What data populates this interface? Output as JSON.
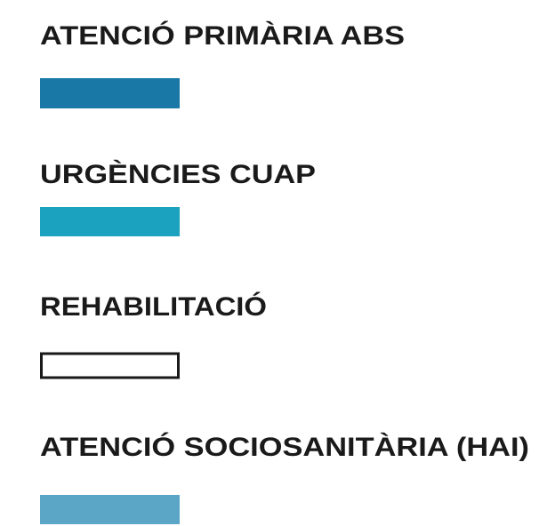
{
  "legend": {
    "items": [
      {
        "label": "ATENCIÓ PRIMÀRIA ABS",
        "color": "#1a78a6"
      },
      {
        "label": "URGÈNCIES CUAP",
        "color": "#1ba2be"
      },
      {
        "label": "REHABILITACIÓ",
        "color": "#ffffff",
        "outline": "#1a1a1a"
      },
      {
        "label": "ATENCIÓ SOCIOSANITÀRIA (HAI)",
        "color": "#5ba6c6"
      }
    ]
  }
}
